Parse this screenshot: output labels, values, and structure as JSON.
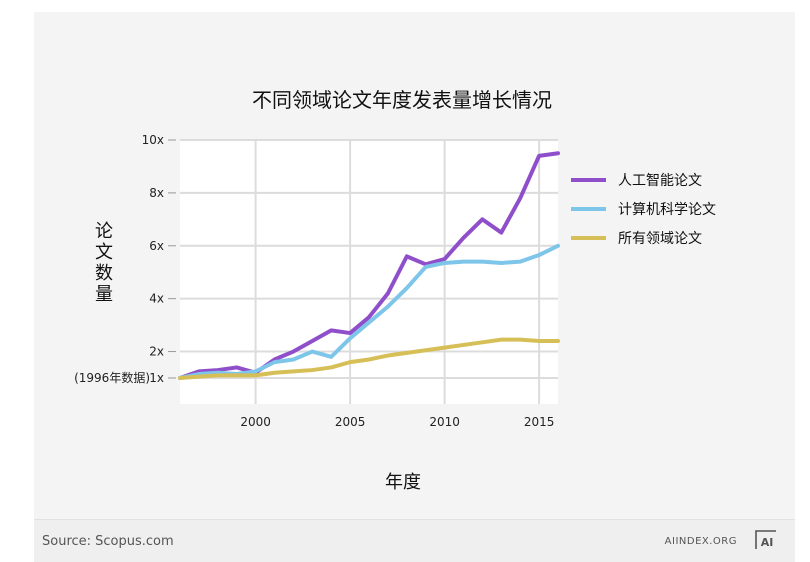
{
  "chart_data": {
    "type": "line",
    "title": "不同领域论文年度发表量增长情况",
    "xlabel": "年度",
    "ylabel": "论文数量",
    "y_baseline_note": "(1996年数据)",
    "xlim": [
      1996,
      2016
    ],
    "ylim": [
      0,
      10
    ],
    "x_ticks": [
      2000,
      2005,
      2010,
      2015
    ],
    "x_tick_labels": [
      "2000",
      "2005",
      "2010",
      "2015"
    ],
    "y_ticks": [
      1,
      2,
      4,
      6,
      8,
      10
    ],
    "y_tick_labels": [
      "1x",
      "2x",
      "4x",
      "6x",
      "8x",
      "10x"
    ],
    "grid": true,
    "legend_position": "right",
    "series": [
      {
        "name": "人工智能论文",
        "color": "#8f4fcb",
        "x": [
          1996,
          1997,
          1998,
          1999,
          2000,
          2001,
          2002,
          2003,
          2004,
          2005,
          2006,
          2007,
          2008,
          2009,
          2010,
          2011,
          2012,
          2013,
          2014,
          2015,
          2016
        ],
        "y": [
          1.0,
          1.25,
          1.3,
          1.4,
          1.2,
          1.7,
          2.0,
          2.4,
          2.8,
          2.7,
          3.3,
          4.2,
          5.6,
          5.3,
          5.5,
          6.3,
          7.0,
          6.5,
          7.8,
          9.4,
          9.5
        ]
      },
      {
        "name": "计算机科学论文",
        "color": "#7ec5ea",
        "x": [
          1996,
          1997,
          1998,
          1999,
          2000,
          2001,
          2002,
          2003,
          2004,
          2005,
          2006,
          2007,
          2008,
          2009,
          2010,
          2011,
          2012,
          2013,
          2014,
          2015,
          2016
        ],
        "y": [
          1.0,
          1.15,
          1.2,
          1.15,
          1.25,
          1.6,
          1.7,
          2.0,
          1.8,
          2.5,
          3.1,
          3.7,
          4.4,
          5.2,
          5.35,
          5.4,
          5.4,
          5.35,
          5.4,
          5.65,
          6.0
        ]
      },
      {
        "name": "所有领域论文",
        "color": "#d6bf57",
        "x": [
          1996,
          1997,
          1998,
          1999,
          2000,
          2001,
          2002,
          2003,
          2004,
          2005,
          2006,
          2007,
          2008,
          2009,
          2010,
          2011,
          2012,
          2013,
          2014,
          2015,
          2016
        ],
        "y": [
          1.0,
          1.05,
          1.1,
          1.1,
          1.1,
          1.2,
          1.25,
          1.3,
          1.4,
          1.6,
          1.7,
          1.85,
          1.95,
          2.05,
          2.15,
          2.25,
          2.35,
          2.45,
          2.45,
          2.4,
          2.4
        ]
      }
    ]
  },
  "footer": {
    "source": "Source: Scopus.com",
    "brand": "AIINDEX.ORG",
    "logo_text": "AI"
  }
}
